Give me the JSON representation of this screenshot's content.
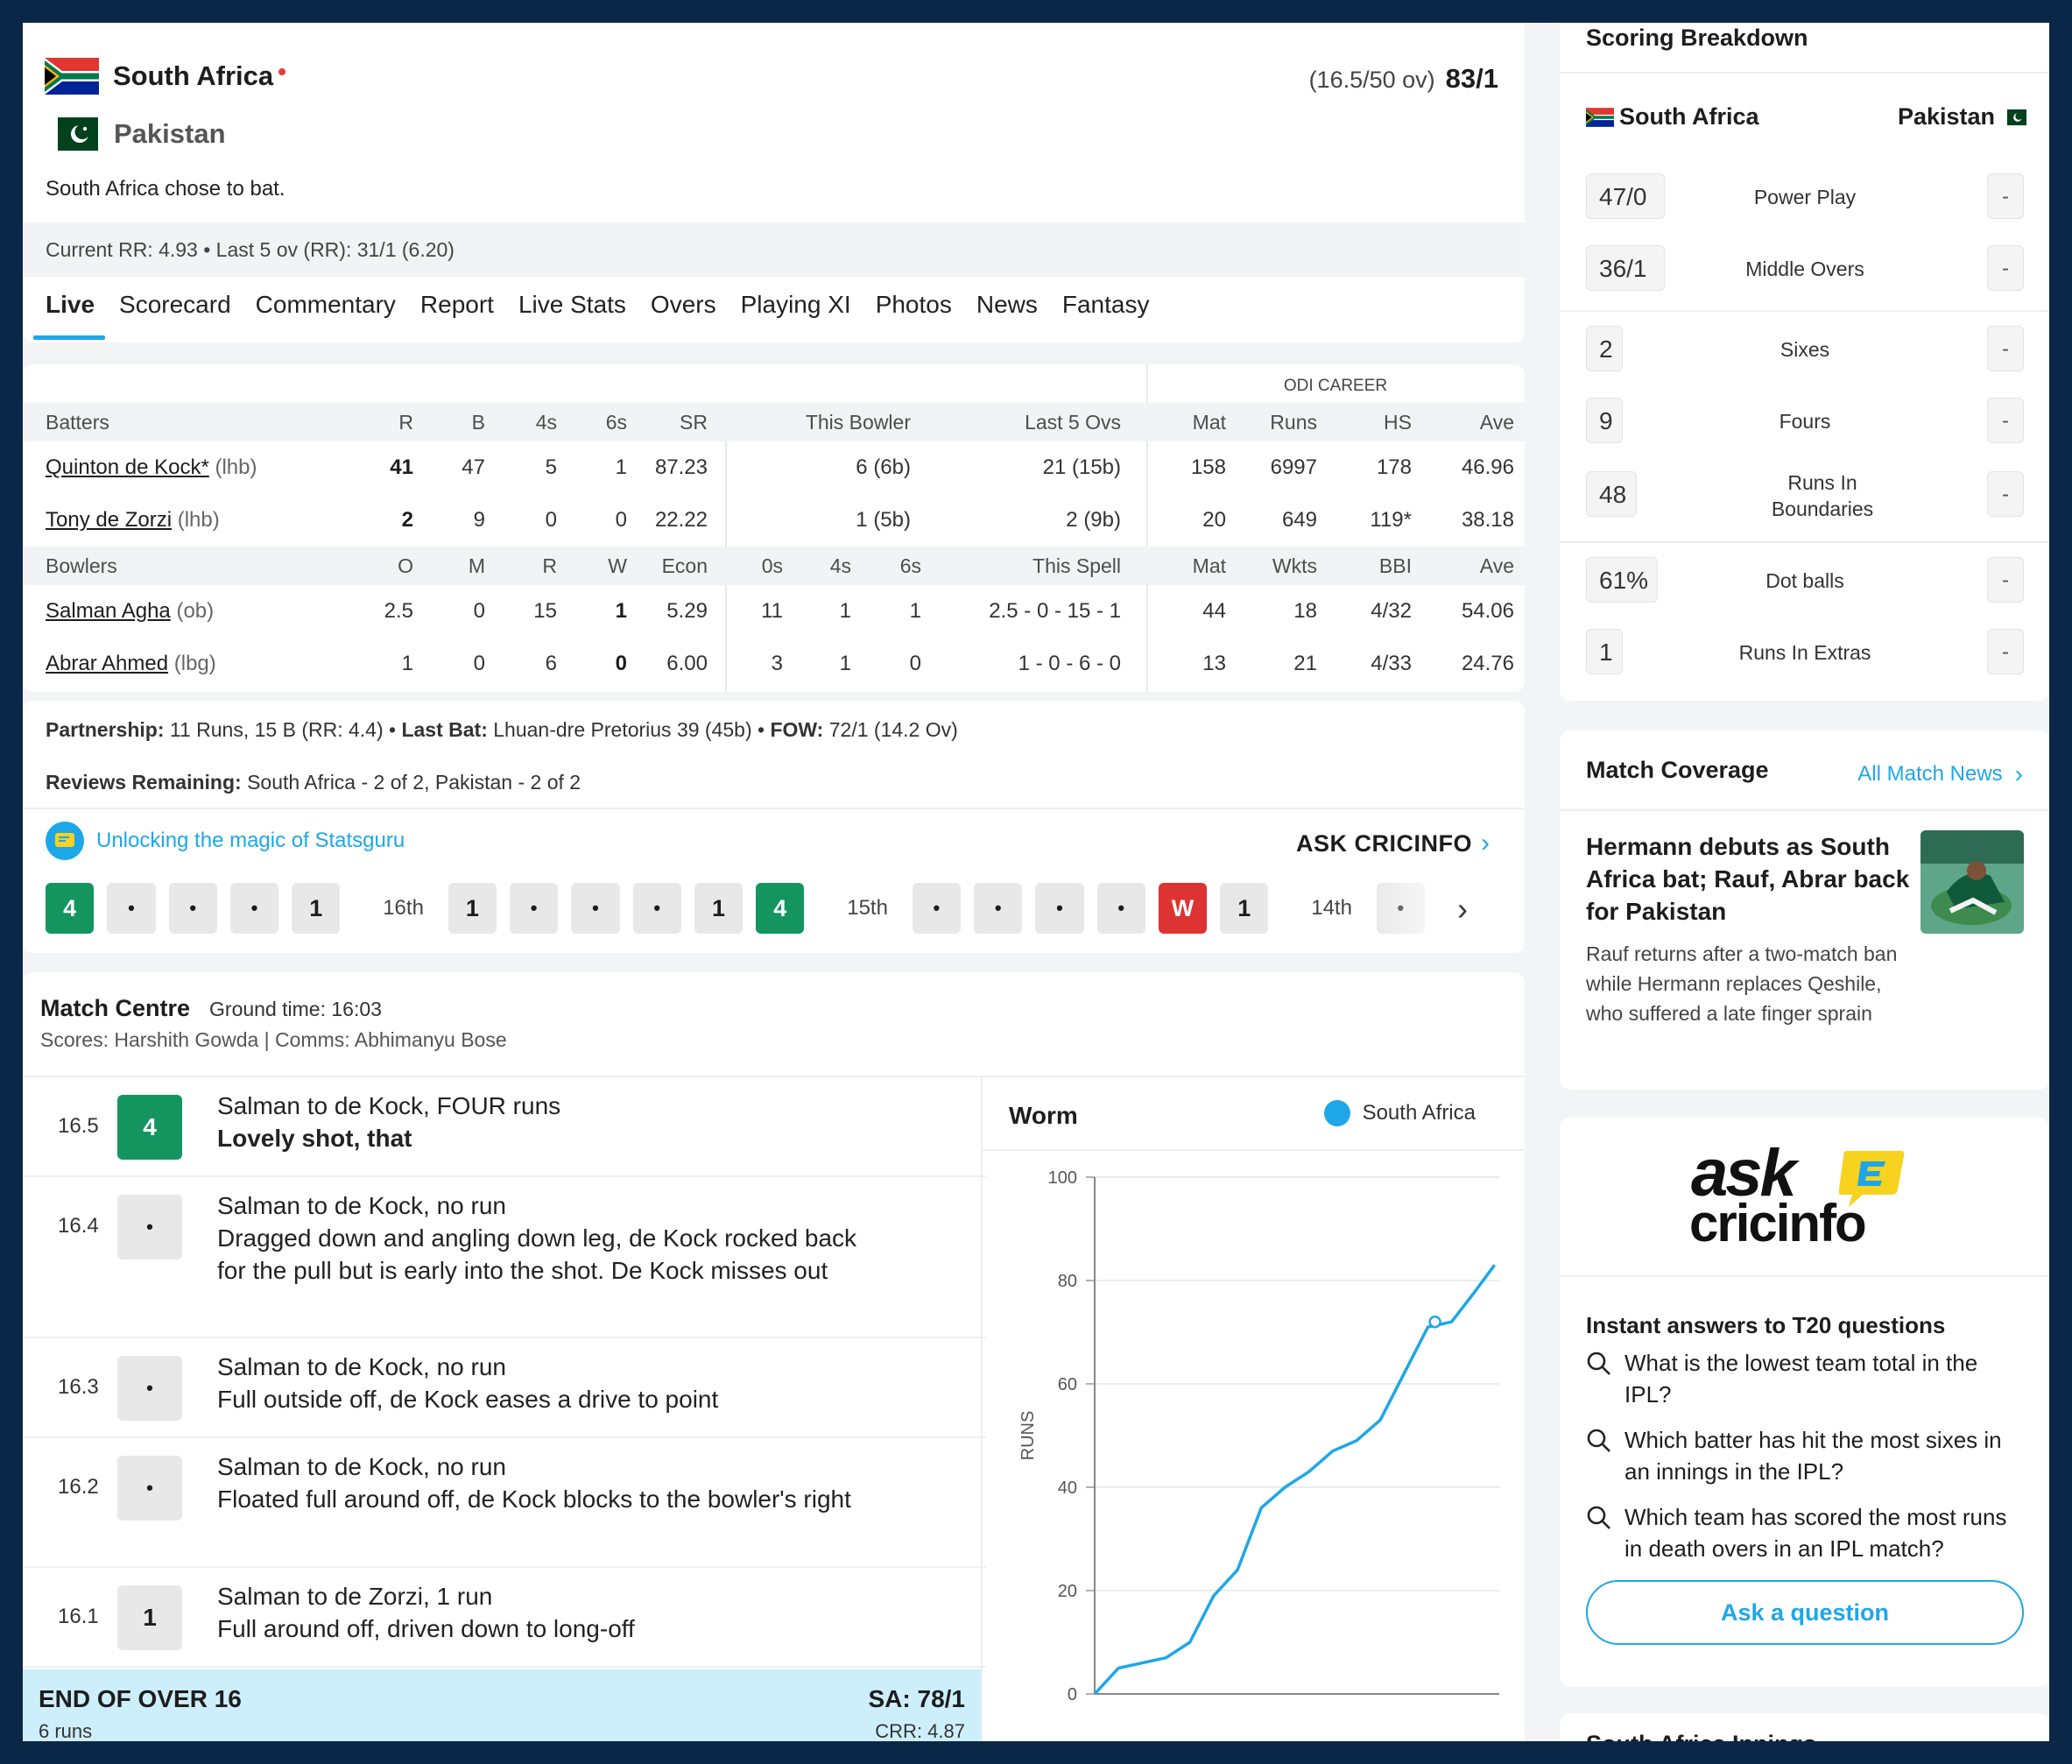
{
  "header": {
    "team1": {
      "name": "South Africa",
      "overs": "(16.5/50 ov)",
      "score": "83/1"
    },
    "team2": {
      "name": "Pakistan"
    },
    "toss": "South Africa chose to bat.",
    "run_rate": "Current RR: 4.93 • Last 5 ov (RR): 31/1 (6.20)"
  },
  "tabs": [
    "Live",
    "Scorecard",
    "Commentary",
    "Report",
    "Live Stats",
    "Overs",
    "Playing XI",
    "Photos",
    "News",
    "Fantasy"
  ],
  "stats": {
    "career_label": "ODI CAREER",
    "batter_headers": [
      "Batters",
      "R",
      "B",
      "4s",
      "6s",
      "SR",
      "This Bowler",
      "Last 5 Ovs",
      "Mat",
      "Runs",
      "HS",
      "Ave"
    ],
    "batters": [
      {
        "name": "Quinton de Kock*",
        "style": "(lhb)",
        "r": "41",
        "b": "47",
        "fours": "5",
        "sixes": "1",
        "sr": "87.23",
        "this_bowler": "6 (6b)",
        "last5": "21 (15b)",
        "mat": "158",
        "runs": "6997",
        "hs": "178",
        "ave": "46.96"
      },
      {
        "name": "Tony de Zorzi",
        "style": "(lhb)",
        "r": "2",
        "b": "9",
        "fours": "0",
        "sixes": "0",
        "sr": "22.22",
        "this_bowler": "1 (5b)",
        "last5": "2 (9b)",
        "mat": "20",
        "runs": "649",
        "hs": "119*",
        "ave": "38.18"
      }
    ],
    "bowler_headers": [
      "Bowlers",
      "O",
      "M",
      "R",
      "W",
      "Econ",
      "0s",
      "4s",
      "6s",
      "This Spell",
      "Mat",
      "Wkts",
      "BBI",
      "Ave"
    ],
    "bowlers": [
      {
        "name": "Salman Agha",
        "style": "(ob)",
        "o": "2.5",
        "m": "0",
        "r": "15",
        "w": "1",
        "econ": "5.29",
        "zeros": "11",
        "fours": "1",
        "sixes": "1",
        "spell": "2.5 - 0 - 15 - 1",
        "mat": "44",
        "wkts": "18",
        "bbi": "4/32",
        "ave": "54.06"
      },
      {
        "name": "Abrar Ahmed",
        "style": "(lbg)",
        "o": "1",
        "m": "0",
        "r": "6",
        "w": "0",
        "econ": "6.00",
        "zeros": "3",
        "fours": "1",
        "sixes": "0",
        "spell": "1 - 0 - 6 - 0",
        "mat": "13",
        "wkts": "21",
        "bbi": "4/33",
        "ave": "24.76"
      }
    ]
  },
  "info": {
    "partnership_label": "Partnership:",
    "partnership": "11 Runs, 15 B (RR: 4.4)",
    "last_bat_label": "Last Bat:",
    "last_bat": "Lhuan-dre Pretorius 39 (45b)",
    "fow_label": "FOW:",
    "fow": "72/1 (14.2 Ov)",
    "reviews_label": "Reviews Remaining:",
    "reviews": "South Africa - 2 of 2, Pakistan - 2 of 2",
    "statsguru": "Unlocking the magic of Statsguru",
    "ask": "ASK CRICINFO"
  },
  "ball_strip": [
    {
      "t": "ball",
      "v": "4",
      "k": "four"
    },
    {
      "t": "ball",
      "v": "•",
      "k": "dot"
    },
    {
      "t": "ball",
      "v": "•",
      "k": "dot"
    },
    {
      "t": "ball",
      "v": "•",
      "k": "dot"
    },
    {
      "t": "ball",
      "v": "1",
      "k": "run"
    },
    {
      "t": "label",
      "v": "16th"
    },
    {
      "t": "ball",
      "v": "1",
      "k": "run"
    },
    {
      "t": "ball",
      "v": "•",
      "k": "dot"
    },
    {
      "t": "ball",
      "v": "•",
      "k": "dot"
    },
    {
      "t": "ball",
      "v": "•",
      "k": "dot"
    },
    {
      "t": "ball",
      "v": "1",
      "k": "run"
    },
    {
      "t": "ball",
      "v": "4",
      "k": "four"
    },
    {
      "t": "label",
      "v": "15th"
    },
    {
      "t": "ball",
      "v": "•",
      "k": "dot"
    },
    {
      "t": "ball",
      "v": "•",
      "k": "dot"
    },
    {
      "t": "ball",
      "v": "•",
      "k": "dot"
    },
    {
      "t": "ball",
      "v": "•",
      "k": "dot"
    },
    {
      "t": "ball",
      "v": "W",
      "k": "wk"
    },
    {
      "t": "ball",
      "v": "1",
      "k": "run"
    },
    {
      "t": "label",
      "v": "14th"
    },
    {
      "t": "ball",
      "v": "•",
      "k": "dot"
    }
  ],
  "match_centre": {
    "title": "Match Centre",
    "ground_time": "Ground time: 16:03",
    "credits": "Scores: Harshith Gowda | Comms: Abhimanyu Bose"
  },
  "commentary": [
    {
      "over": "16.5",
      "ball": "4",
      "kind": "four",
      "line1": "Salman to de Kock, FOUR runs",
      "line2": "Lovely shot, that",
      "bold2": true
    },
    {
      "over": "16.4",
      "ball": "•",
      "kind": "dot",
      "line1": "Salman to de Kock, no run",
      "line2": "Dragged down and angling down leg, de Kock rocked back for the pull but is early into the shot. De Kock misses out",
      "bold2": false
    },
    {
      "over": "16.3",
      "ball": "•",
      "kind": "dot",
      "line1": "Salman to de Kock, no run",
      "line2": "Full outside off, de Kock eases a drive to point",
      "bold2": false
    },
    {
      "over": "16.2",
      "ball": "•",
      "kind": "dot",
      "line1": "Salman to de Kock, no run",
      "line2": "Floated full around off, de Kock blocks to the bowler's right",
      "bold2": false
    },
    {
      "over": "16.1",
      "ball": "1",
      "kind": "run",
      "line1": "Salman to de Zorzi, 1 run",
      "line2": "Full around off, driven down to long-off",
      "bold2": false
    }
  ],
  "end_of_over": {
    "title": "END OF OVER 16",
    "runs": "6 runs",
    "score": "SA: 78/1",
    "crr": "CRR: 4.87"
  },
  "chart_data": {
    "type": "line",
    "title": "Worm",
    "ylabel": "RUNS",
    "xlabel": "",
    "ylim": [
      0,
      100
    ],
    "yticks": [
      0,
      20,
      40,
      60,
      80,
      100
    ],
    "series": [
      {
        "name": "South Africa",
        "color": "#1ea7e8",
        "x": [
          0,
          1,
          2,
          3,
          4,
          5,
          6,
          7,
          8,
          9,
          10,
          11,
          12,
          13,
          14,
          15,
          16,
          16.8
        ],
        "y": [
          0,
          5,
          6,
          7,
          10,
          19,
          24,
          36,
          40,
          43,
          47,
          49,
          53,
          62,
          71,
          72,
          78,
          83
        ],
        "wicket_at": {
          "x": 14.3,
          "y": 72
        }
      }
    ]
  },
  "scoring": {
    "title": "Scoring Breakdown",
    "team1": "South Africa",
    "team2": "Pakistan",
    "rows": [
      {
        "sa": "47/0",
        "label": "Power Play",
        "pak": "-"
      },
      {
        "sa": "36/1",
        "label": "Middle Overs",
        "pak": "-"
      },
      {
        "sa": "2",
        "label": "Sixes",
        "pak": "-"
      },
      {
        "sa": "9",
        "label": "Fours",
        "pak": "-"
      },
      {
        "sa": "48",
        "label": "Runs In Boundaries",
        "pak": "-"
      },
      {
        "sa": "61%",
        "label": "Dot balls",
        "pak": "-"
      },
      {
        "sa": "1",
        "label": "Runs In Extras",
        "pak": "-"
      }
    ]
  },
  "coverage": {
    "title": "Match Coverage",
    "link": "All Match News",
    "headline": "Hermann debuts as South Africa bat; Rauf, Abrar back for Pakistan",
    "summary": "Rauf returns after a two-match ban while Hermann replaces Qeshile, who suffered a late finger sprain"
  },
  "ask_panel": {
    "logo_line1": "ask",
    "logo_line2": "cricinfo",
    "title": "Instant answers to T20 questions",
    "questions": [
      "What is the lowest team total in the IPL?",
      "Which batter has hit the most sixes in an innings in the IPL?",
      "Which team has scored the most runs in death overs in an IPL match?"
    ],
    "button": "Ask a question"
  },
  "next_section": "South Africa Innings",
  "colors": {
    "brand_blue": "#1ea7e8",
    "four_green": "#14955f",
    "wicket_red": "#dd3333",
    "frame_navy": "#0b2748"
  }
}
